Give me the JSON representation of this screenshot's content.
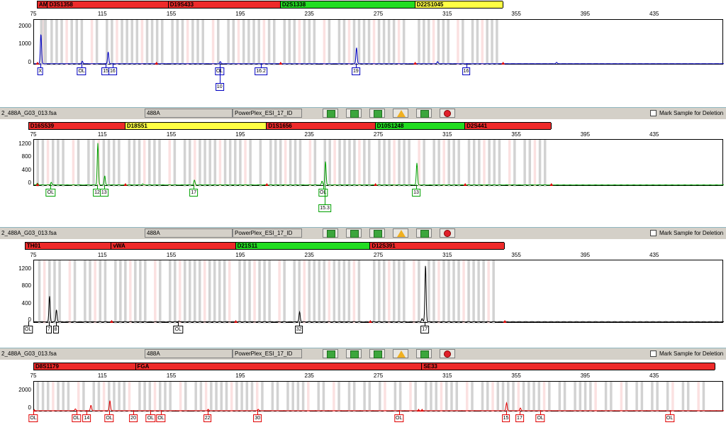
{
  "panels": [
    {
      "header": null,
      "color": "#0000c0",
      "loci": [
        {
          "name": "AMEL",
          "color": "red",
          "from": 77,
          "to": 83
        },
        {
          "name": "D3S1358",
          "color": "red",
          "from": 83,
          "to": 153
        },
        {
          "name": "D19S433",
          "color": "red",
          "from": 153,
          "to": 218
        },
        {
          "name": "D2S1338",
          "color": "green",
          "from": 218,
          "to": 296
        },
        {
          "name": "D22S1045",
          "color": "yellow",
          "from": 296,
          "to": 347
        }
      ],
      "yticks": [
        "2000",
        "1000",
        "0"
      ],
      "ymax": 2500,
      "peaks": [
        {
          "bp": 79,
          "h": 1750
        },
        {
          "bp": 103,
          "h": 150
        },
        {
          "bp": 118,
          "h": 700
        },
        {
          "bp": 183,
          "h": 120
        },
        {
          "bp": 262,
          "h": 950
        },
        {
          "bp": 309,
          "h": 120
        },
        {
          "bp": 378,
          "h": 80
        }
      ],
      "markers": [
        {
          "bp": 77,
          "color": "red"
        },
        {
          "bp": 146,
          "color": "red"
        },
        {
          "bp": 218,
          "color": "red"
        },
        {
          "bp": 296,
          "color": "red"
        },
        {
          "bp": 347,
          "color": "red"
        }
      ],
      "alleles": [
        {
          "label": "X",
          "bp": 79,
          "row": 0
        },
        {
          "label": "OL",
          "bp": 103,
          "row": 0
        },
        {
          "label": "15",
          "bp": 117,
          "row": 0
        },
        {
          "label": "16",
          "bp": 121,
          "row": 0
        },
        {
          "label": "OL",
          "bp": 183,
          "row": 0
        },
        {
          "label": "10",
          "bp": 183,
          "row": 1
        },
        {
          "label": "16.2",
          "bp": 207,
          "row": 0
        },
        {
          "label": "19",
          "bp": 262,
          "row": 0
        },
        {
          "label": "16",
          "bp": 326,
          "row": 0
        }
      ]
    },
    {
      "header": {
        "file": "2_488A_G03_013.fsa",
        "sample": "488A",
        "kit": "PowerPlex_ESI_17_ID"
      },
      "color": "#00a000",
      "loci": [
        {
          "name": "D16S539",
          "color": "red",
          "from": 72,
          "to": 128
        },
        {
          "name": "D18S51",
          "color": "yellow",
          "from": 128,
          "to": 210
        },
        {
          "name": "D1S1656",
          "color": "red",
          "from": 210,
          "to": 273
        },
        {
          "name": "D10S1248",
          "color": "green",
          "from": 273,
          "to": 325
        },
        {
          "name": "D2S441",
          "color": "red",
          "from": 325,
          "to": 375
        }
      ],
      "yticks": [
        "1200",
        "800",
        "400",
        "0"
      ],
      "ymax": 1450,
      "peaks": [
        {
          "bp": 77,
          "h": 60
        },
        {
          "bp": 85,
          "h": 90
        },
        {
          "bp": 112,
          "h": 1380
        },
        {
          "bp": 116,
          "h": 300
        },
        {
          "bp": 138,
          "h": 30
        },
        {
          "bp": 168,
          "h": 160
        },
        {
          "bp": 244,
          "h": 780
        },
        {
          "bp": 242,
          "h": 120
        },
        {
          "bp": 297,
          "h": 720
        }
      ],
      "markers": [
        {
          "bp": 77,
          "color": "red"
        },
        {
          "bp": 128,
          "color": "red"
        },
        {
          "bp": 210,
          "color": "red"
        },
        {
          "bp": 273,
          "color": "red"
        },
        {
          "bp": 325,
          "color": "red"
        },
        {
          "bp": 375,
          "color": "red"
        }
      ],
      "alleles": [
        {
          "label": "OL",
          "bp": 85,
          "row": 0
        },
        {
          "label": "12",
          "bp": 112,
          "row": 0
        },
        {
          "label": "13",
          "bp": 116,
          "row": 0
        },
        {
          "label": "17",
          "bp": 168,
          "row": 0
        },
        {
          "label": "OL",
          "bp": 243,
          "row": 0
        },
        {
          "label": "15.3",
          "bp": 244,
          "row": 1
        },
        {
          "label": "13",
          "bp": 297,
          "row": 0
        }
      ]
    },
    {
      "header": {
        "file": "2_488A_G03_013.fsa",
        "sample": "488A",
        "kit": "PowerPlex_ESI_17_ID"
      },
      "color": "#000000",
      "loci": [
        {
          "name": "TH01",
          "color": "red",
          "from": 70,
          "to": 120
        },
        {
          "name": "vWA",
          "color": "red",
          "from": 120,
          "to": 192
        },
        {
          "name": "D21S11",
          "color": "green",
          "from": 192,
          "to": 270
        },
        {
          "name": "D12S391",
          "color": "red",
          "from": 270,
          "to": 348
        }
      ],
      "yticks": [
        "1200",
        "800",
        "400",
        "0"
      ],
      "ymax": 1500,
      "peaks": [
        {
          "bp": 84,
          "h": 640
        },
        {
          "bp": 88,
          "h": 300
        },
        {
          "bp": 159,
          "h": 20
        },
        {
          "bp": 229,
          "h": 250
        },
        {
          "bp": 302,
          "h": 1420
        },
        {
          "bp": 300,
          "h": 80
        }
      ],
      "markers": [
        {
          "bp": 120,
          "color": "red"
        },
        {
          "bp": 192,
          "color": "red"
        },
        {
          "bp": 270,
          "color": "red"
        },
        {
          "bp": 348,
          "color": "red"
        }
      ],
      "alleles": [
        {
          "label": "OL",
          "bp": 72,
          "row": 0
        },
        {
          "label": "7",
          "bp": 84,
          "row": 0
        },
        {
          "label": "8",
          "bp": 88,
          "row": 0
        },
        {
          "label": "OL",
          "bp": 159,
          "row": 0
        },
        {
          "label": "32",
          "bp": 229,
          "row": 0
        },
        {
          "label": "17",
          "bp": 302,
          "row": 0
        }
      ]
    },
    {
      "header": {
        "file": "2_488A_G03_013.fsa",
        "sample": "488A",
        "kit": "PowerPlex_ESI_17_ID"
      },
      "color": "#e00000",
      "loci": [
        {
          "name": "D8S1179",
          "color": "red",
          "from": 75,
          "to": 134
        },
        {
          "name": "FGA",
          "color": "red",
          "from": 134,
          "to": 300
        },
        {
          "name": "SE33",
          "color": "red",
          "from": 300,
          "to": 470
        }
      ],
      "yticks": [
        "2000",
        "0"
      ],
      "ymax": 3000,
      "peaks": [
        {
          "bp": 99,
          "h": 200
        },
        {
          "bp": 108,
          "h": 600
        },
        {
          "bp": 119,
          "h": 1100
        },
        {
          "bp": 176,
          "h": 150
        },
        {
          "bp": 205,
          "h": 150
        },
        {
          "bp": 349,
          "h": 850
        },
        {
          "bp": 357,
          "h": 300
        }
      ],
      "markers": [
        {
          "bp": 75,
          "color": "red"
        },
        {
          "bp": 298,
          "color": "red"
        },
        {
          "bp": 300,
          "color": "red"
        }
      ],
      "alleles": [
        {
          "label": "OL",
          "bp": 75,
          "row": 0
        },
        {
          "label": "OL",
          "bp": 100,
          "row": 0
        },
        {
          "label": "14",
          "bp": 106,
          "row": 0
        },
        {
          "label": "OL",
          "bp": 119,
          "row": 0
        },
        {
          "label": "20",
          "bp": 133,
          "row": 0
        },
        {
          "label": "OL",
          "bp": 143,
          "row": 0
        },
        {
          "label": "OL",
          "bp": 149,
          "row": 0
        },
        {
          "label": "22",
          "bp": 176,
          "row": 0
        },
        {
          "label": "30",
          "bp": 205,
          "row": 0
        },
        {
          "label": "OL",
          "bp": 287,
          "row": 0
        },
        {
          "label": "15",
          "bp": 349,
          "row": 0
        },
        {
          "label": "17",
          "bp": 357,
          "row": 0
        },
        {
          "label": "OL",
          "bp": 369,
          "row": 0
        },
        {
          "label": "OL",
          "bp": 444,
          "row": 0
        }
      ]
    }
  ],
  "xticks": [
    "75",
    "115",
    "155",
    "195",
    "235",
    "275",
    "315",
    "355",
    "395",
    "435"
  ],
  "mark_label": "Mark Sample for Deletion",
  "icons": [
    "green-square-icon",
    "green-square-icon",
    "green-square-icon",
    "warning-triangle-icon",
    "green-square-icon",
    "red-stop-icon"
  ]
}
